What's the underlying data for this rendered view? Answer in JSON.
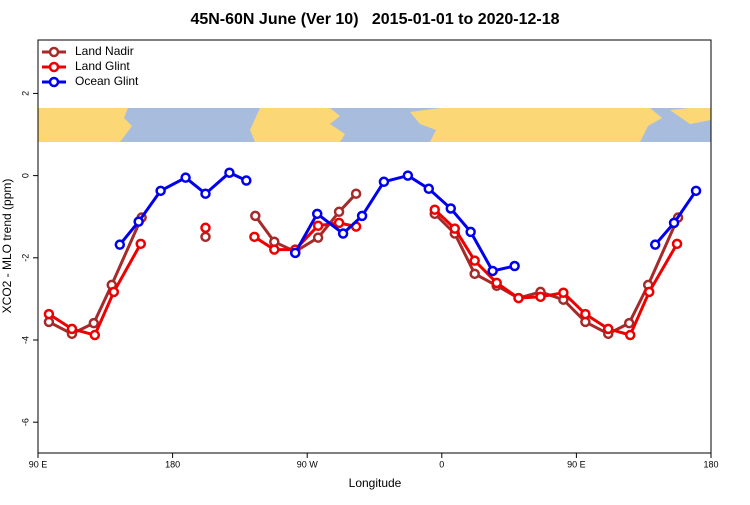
{
  "chart_data": {
    "type": "line",
    "title": "45N-60N June (Ver 10)   2015-01-01 to 2020-12-18",
    "x_label": "Longitude",
    "y_label": "XCO2 - MLO trend (ppm)",
    "xlim": [
      90,
      540
    ],
    "xticks": [
      {
        "value": 90,
        "label": "90 E"
      },
      {
        "value": 180,
        "label": "180"
      },
      {
        "value": 270,
        "label": "90 W"
      },
      {
        "value": 360,
        "label": "0"
      },
      {
        "value": 450,
        "label": "90 E"
      },
      {
        "value": 540,
        "label": "180"
      }
    ],
    "ylim": [
      -6.75,
      3.3
    ],
    "yticks": [
      -6,
      -4,
      -2,
      0,
      2
    ],
    "legend": "top-left",
    "series": [
      {
        "name": "Land Nadir",
        "color": "#a52a2a",
        "x": [
          97.3,
          112.7,
          127.3,
          139.3,
          159.3,
          null,
          202,
          null,
          235.3,
          248,
          262,
          277.3,
          291.3,
          302.7,
          null,
          355.3,
          368.7,
          382,
          396.7,
          411.3,
          426,
          441.3,
          456,
          471.3,
          485.3,
          498,
          518
        ],
        "values": [
          -3.56,
          -3.85,
          -3.59,
          -2.66,
          -1.02,
          null,
          -1.49,
          null,
          -0.98,
          -1.61,
          -1.85,
          -1.51,
          -0.88,
          -0.44,
          null,
          -0.93,
          -1.41,
          -2.39,
          -2.68,
          -2.98,
          -2.83,
          -3.02,
          -3.56,
          -3.85,
          -3.59,
          -2.66,
          -1.02
        ]
      },
      {
        "name": "Land Glint",
        "color": "#ee0000",
        "x": [
          97.3,
          112.7,
          128,
          140.7,
          158.7,
          null,
          202,
          null,
          234.7,
          248,
          262,
          277.3,
          291.3,
          302.7,
          null,
          355.3,
          368.7,
          382,
          396.7,
          411.3,
          426,
          441.3,
          456,
          471.3,
          486,
          498.7,
          517.3
        ],
        "values": [
          -3.37,
          -3.73,
          -3.88,
          -2.83,
          -1.66,
          null,
          -1.27,
          null,
          -1.49,
          -1.8,
          -1.8,
          -1.22,
          -1.15,
          -1.24,
          null,
          -0.83,
          -1.29,
          -2.07,
          -2.61,
          -2.98,
          -2.95,
          -2.85,
          -3.37,
          -3.73,
          -3.88,
          -2.83,
          -1.66
        ]
      },
      {
        "name": "Ocean Glint",
        "color": "#0000ee",
        "x": [
          144.7,
          157.3,
          172,
          188.7,
          202,
          218,
          229.3,
          null,
          262,
          276.7,
          294,
          306.7,
          321.3,
          337.3,
          351.3,
          366,
          379.3,
          394,
          408.7,
          null,
          502.7,
          515.3,
          530
        ],
        "values": [
          -1.68,
          -1.12,
          -0.37,
          -0.05,
          -0.44,
          0.07,
          -0.12,
          null,
          -1.88,
          -0.93,
          -1.41,
          -0.98,
          -0.15,
          0,
          -0.32,
          -0.8,
          -1.37,
          -2.32,
          -2.2,
          null,
          -1.68,
          -1.15,
          -0.37
        ]
      }
    ]
  }
}
